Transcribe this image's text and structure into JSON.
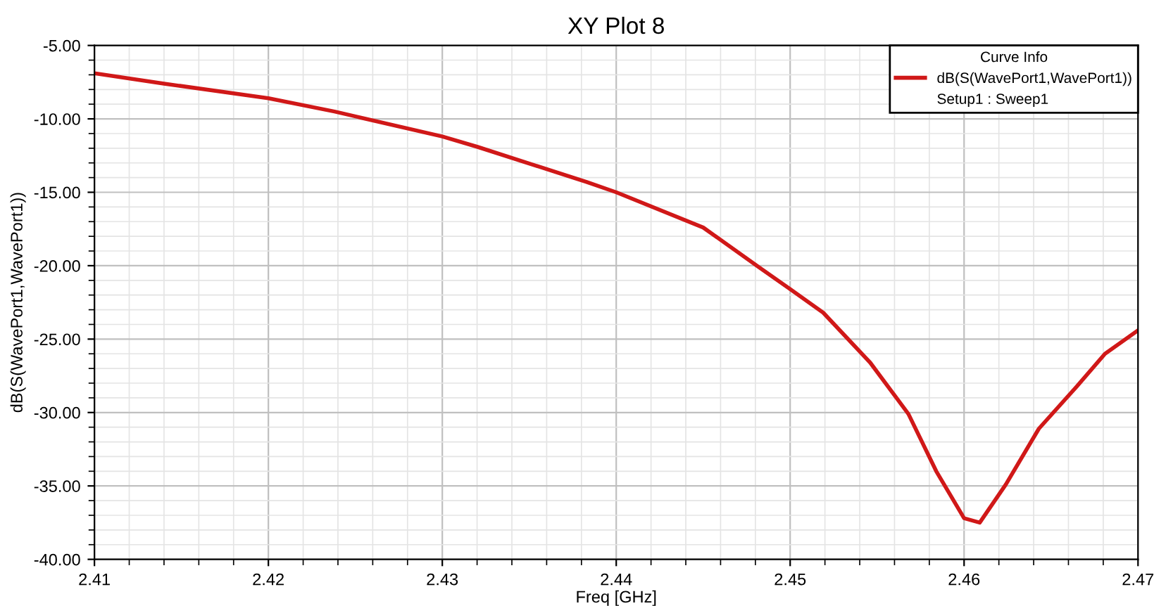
{
  "chart_data": {
    "type": "line",
    "title": "XY Plot 8",
    "xlabel": "Freq [GHz]",
    "ylabel": "dB(S(WavePort1,WavePort1))",
    "legend_title": "Curve Info",
    "legend": "top right",
    "grid": true,
    "marker": "none",
    "line_style": "solid",
    "annotations": [
      "Setup1 : Sweep1"
    ],
    "xlim": [
      2.41,
      2.47
    ],
    "xticks": [
      2.41,
      2.42,
      2.43,
      2.44,
      2.45,
      2.46,
      2.47
    ],
    "ylim": [
      -40,
      -5
    ],
    "yticks": [
      {
        "value": -40,
        "label": "-40.00"
      },
      {
        "value": -35,
        "label": "-35.00"
      },
      {
        "value": -30,
        "label": "-30.00"
      },
      {
        "value": -25,
        "label": "-25.00"
      },
      {
        "value": -20,
        "label": "-20.00"
      },
      {
        "value": -15,
        "label": "-15.00"
      },
      {
        "value": -10,
        "label": "-10.00"
      },
      {
        "value": -5,
        "label": "-5.00"
      }
    ],
    "series": [
      {
        "name": "dB(S(WavePort1,WavePort1))",
        "color": "#d01818",
        "x": [
          2.41,
          2.414,
          2.42,
          2.4238,
          2.43,
          2.432,
          2.4383,
          2.44,
          2.445,
          2.4482,
          2.45,
          2.4519,
          2.4546,
          2.4568,
          2.4584,
          2.46,
          2.4609,
          2.4624,
          2.4643,
          2.4665,
          2.4681,
          2.47
        ],
        "values": [
          -6.9,
          -7.6,
          -8.6,
          -9.5,
          -11.2,
          -11.9,
          -14.3,
          -15.0,
          -17.4,
          -20.1,
          -21.6,
          -23.2,
          -26.6,
          -30.1,
          -34.0,
          -37.2,
          -37.5,
          -34.9,
          -31.1,
          -28.2,
          -26.0,
          -24.4
        ]
      }
    ]
  }
}
